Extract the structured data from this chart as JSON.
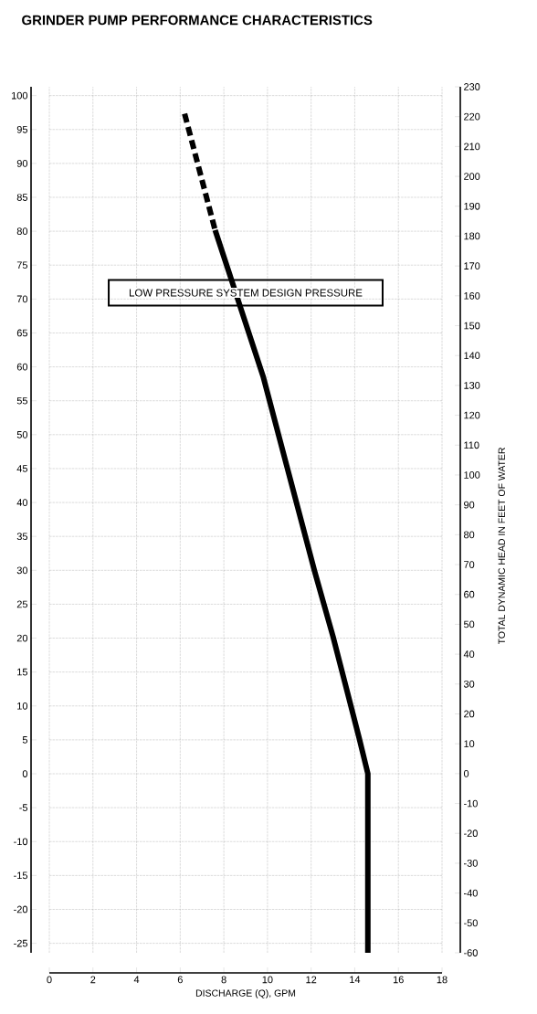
{
  "chart_data": {
    "type": "line",
    "title": "GRINDER PUMP PERFORMANCE CHARACTERISTICS",
    "xlabel": "DISCHARGE (Q), GPM",
    "y2label": "TOTAL DYNAMIC HEAD IN FEET OF WATER",
    "annotations": [
      "LOW PRESSURE SYSTEM DESIGN PRESSURE"
    ],
    "xlim": [
      0,
      18
    ],
    "xticks": [
      0,
      2,
      4,
      6,
      8,
      10,
      12,
      14,
      16,
      18
    ],
    "ylim": [
      -26.4,
      101.3
    ],
    "yticks": [
      100,
      95,
      90,
      85,
      80,
      75,
      70,
      65,
      60,
      55,
      50,
      45,
      40,
      35,
      30,
      25,
      20,
      15,
      10,
      5,
      0,
      -5,
      -10,
      -15,
      -20,
      -25
    ],
    "y2lim": [
      -60,
      230
    ],
    "y2ticks": [
      230,
      220,
      210,
      200,
      190,
      180,
      170,
      160,
      150,
      140,
      130,
      120,
      110,
      100,
      90,
      80,
      70,
      60,
      50,
      40,
      30,
      20,
      10,
      0,
      -10,
      -20,
      -30,
      -40,
      -50,
      -60
    ],
    "grid": true,
    "series": [
      {
        "color": "#000000",
        "line_style": "dashed",
        "axis": "y2",
        "x": [
          6.2,
          7.6
        ],
        "values": [
          221,
          182
        ]
      },
      {
        "color": "#000000",
        "line_style": "solid",
        "axis": "y2",
        "x": [
          7.6,
          9.8,
          12.15,
          13.0,
          14.2,
          14.6,
          14.6
        ],
        "values": [
          182,
          133,
          68,
          46,
          12,
          0,
          -60
        ]
      }
    ]
  }
}
